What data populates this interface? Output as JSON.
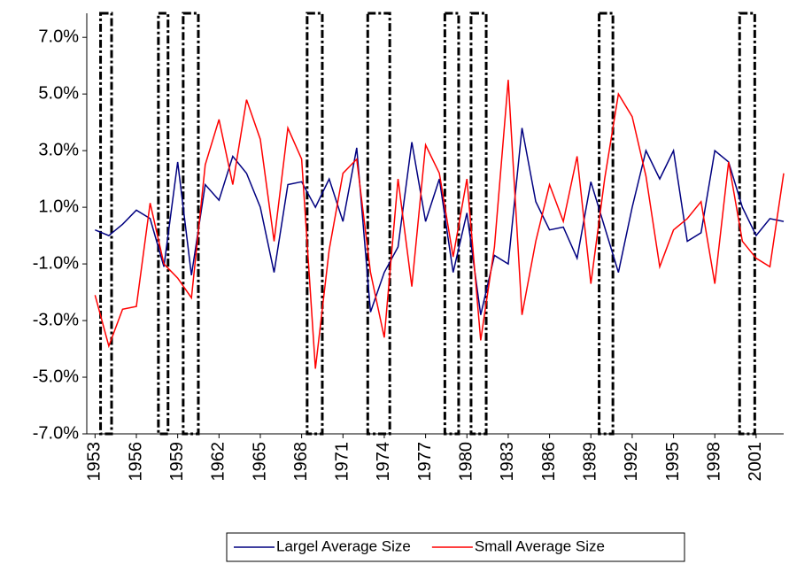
{
  "chart_data": {
    "type": "line",
    "x": [
      1953,
      1954,
      1955,
      1956,
      1957,
      1958,
      1959,
      1960,
      1961,
      1962,
      1963,
      1964,
      1965,
      1966,
      1967,
      1968,
      1969,
      1970,
      1971,
      1972,
      1973,
      1974,
      1975,
      1976,
      1977,
      1978,
      1979,
      1980,
      1981,
      1982,
      1983,
      1984,
      1985,
      1986,
      1987,
      1988,
      1989,
      1990,
      1991,
      1992,
      1993,
      1994,
      1995,
      1996,
      1997,
      1998,
      1999,
      2000,
      2001,
      2002,
      2003
    ],
    "series": [
      {
        "name": "Largel Average Size",
        "color": "#000080",
        "values": [
          0.2,
          0.0,
          0.4,
          0.9,
          0.6,
          -1.1,
          2.6,
          -1.4,
          1.8,
          1.25,
          2.8,
          2.2,
          1.0,
          -1.3,
          1.8,
          1.9,
          1.0,
          2.0,
          0.5,
          3.1,
          -2.7,
          -1.3,
          -0.4,
          3.3,
          0.5,
          2.0,
          -1.3,
          0.8,
          -2.8,
          -0.7,
          -1.0,
          3.8,
          1.2,
          0.2,
          0.3,
          -0.8,
          1.9,
          0.3,
          -1.3,
          1.0,
          3.0,
          2.0,
          3.0,
          -0.2,
          0.1,
          3.0,
          2.6,
          1.0,
          0.0,
          0.6,
          0.5
        ]
      },
      {
        "name": "Small Average Size",
        "color": "#ff0000",
        "values": [
          -2.1,
          -3.9,
          -2.6,
          -2.5,
          1.15,
          -1.0,
          -1.5,
          -2.2,
          2.5,
          4.1,
          1.8,
          4.8,
          3.4,
          -0.2,
          3.8,
          2.7,
          -4.7,
          -0.5,
          2.2,
          2.7,
          -1.3,
          -3.6,
          2.0,
          -1.8,
          3.2,
          2.2,
          -0.75,
          2.0,
          -3.7,
          -0.4,
          5.5,
          -2.8,
          -0.2,
          1.8,
          0.5,
          2.8,
          -1.7,
          2.0,
          5.0,
          4.2,
          2.1,
          -1.1,
          0.2,
          0.6,
          1.2,
          -1.7,
          2.6,
          -0.2,
          -0.8,
          -1.1,
          2.2
        ]
      }
    ],
    "shaded_periods": [
      {
        "start": 1953.4,
        "end": 1954.2
      },
      {
        "start": 1957.6,
        "end": 1958.3
      },
      {
        "start": 1959.4,
        "end": 1960.5
      },
      {
        "start": 1968.4,
        "end": 1969.5
      },
      {
        "start": 1972.8,
        "end": 1974.4
      },
      {
        "start": 1978.4,
        "end": 1979.4
      },
      {
        "start": 1980.3,
        "end": 1981.4
      },
      {
        "start": 1989.6,
        "end": 1990.6
      },
      {
        "start": 1999.8,
        "end": 2000.9
      }
    ],
    "xlim": [
      1952.4,
      2003
    ],
    "xticks": [
      1953,
      1956,
      1959,
      1962,
      1965,
      1968,
      1971,
      1974,
      1977,
      1980,
      1983,
      1986,
      1989,
      1992,
      1995,
      1998,
      2001
    ],
    "ylim": [
      -7,
      7.85
    ],
    "yticks": [
      {
        "value": -7,
        "label": "-7.0%"
      },
      {
        "value": -5,
        "label": "-5.0%"
      },
      {
        "value": -3,
        "label": "-3.0%"
      },
      {
        "value": -1,
        "label": "-1.0%"
      },
      {
        "value": 1,
        "label": "1.0%"
      },
      {
        "value": 3,
        "label": "3.0%"
      },
      {
        "value": 5,
        "label": "5.0%"
      },
      {
        "value": 7,
        "label": "7.0%"
      }
    ],
    "legend": "bottom"
  }
}
